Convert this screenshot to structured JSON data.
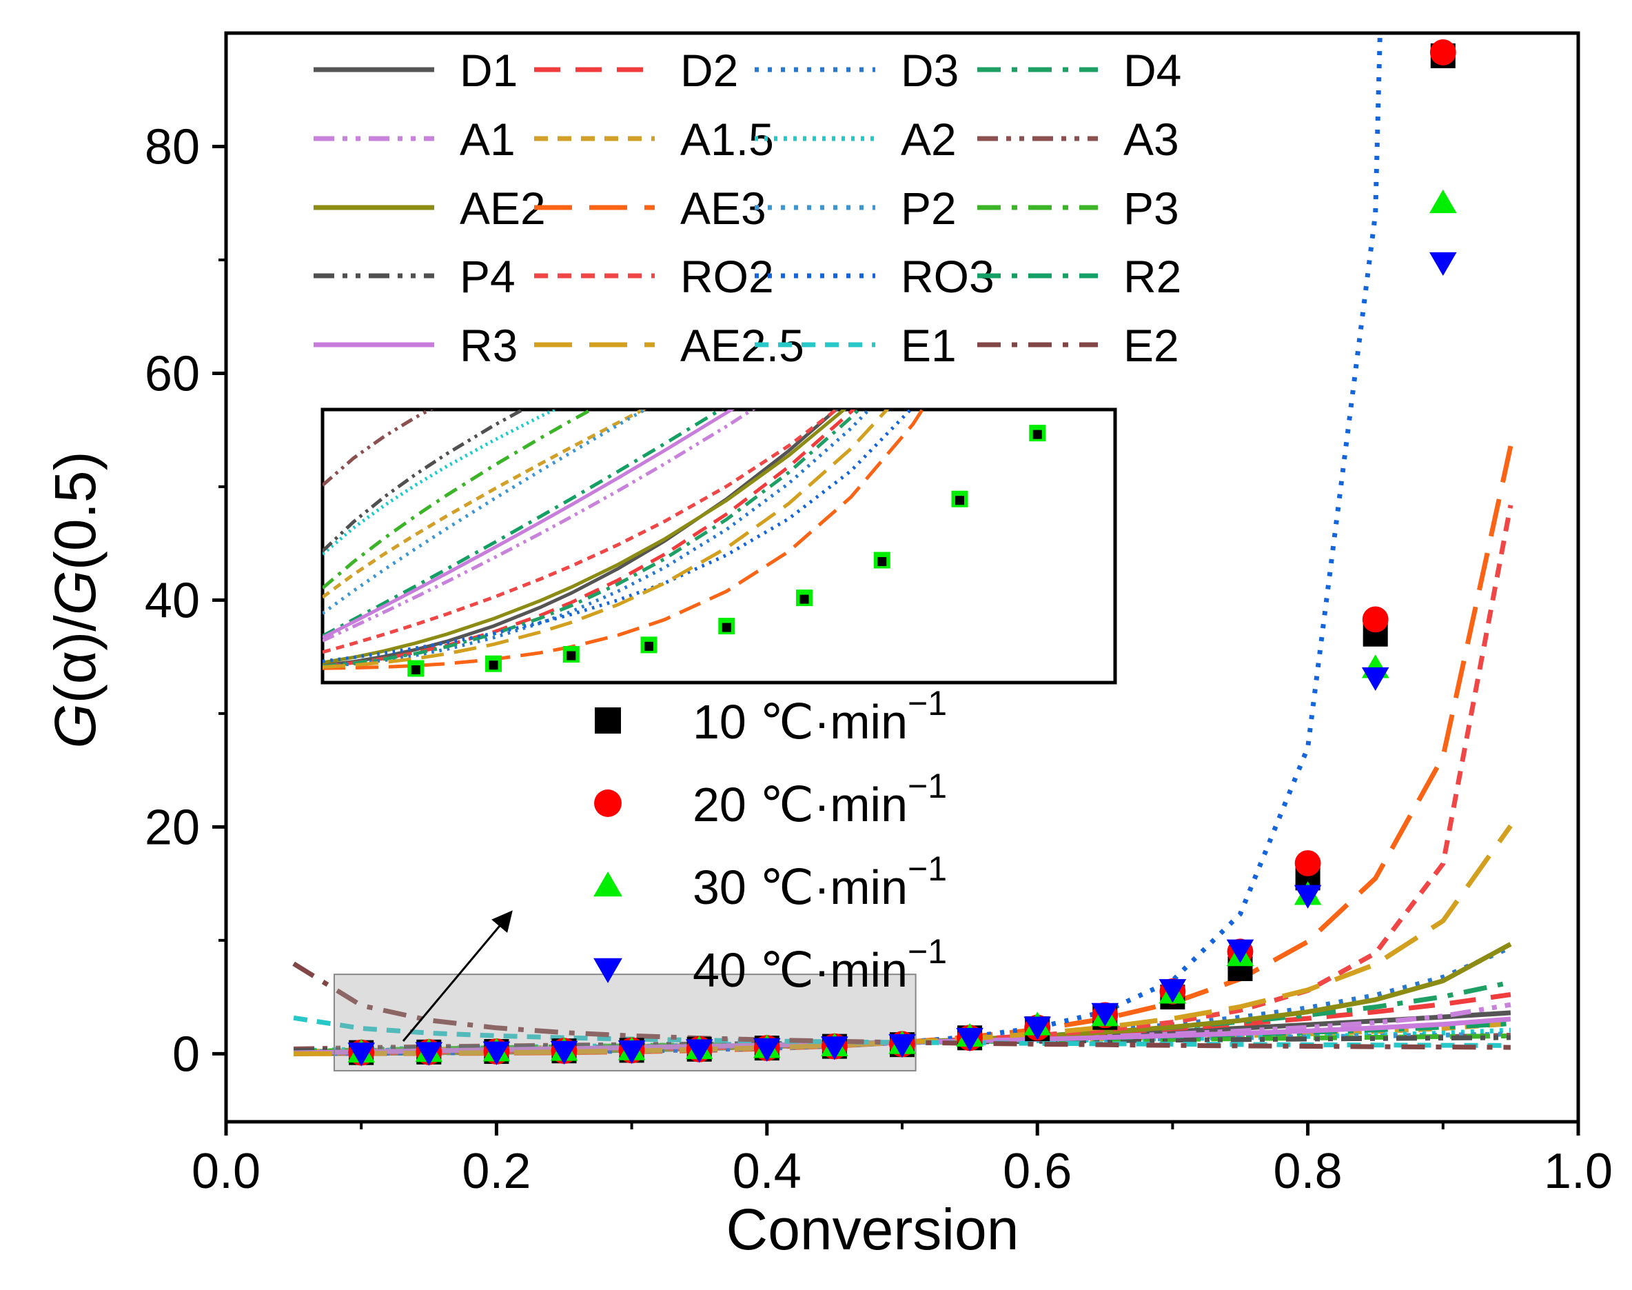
{
  "chart_data": {
    "type": "line",
    "title": "",
    "xlabel": "Conversion",
    "ylabel_parts": {
      "g1": "G",
      "mid1": "(α)/",
      "g2": "G",
      "mid2": "(0.5)"
    },
    "xlim": [
      0.0,
      1.0
    ],
    "ylim": [
      -6,
      90
    ],
    "x_ticks": [
      0.0,
      0.2,
      0.4,
      0.6,
      0.8,
      1.0
    ],
    "x_tick_labels": [
      "0.0",
      "0.2",
      "0.4",
      "0.6",
      "0.8",
      "1.0"
    ],
    "y_ticks": [
      0,
      20,
      40,
      60,
      80
    ],
    "y_tick_labels": [
      "0",
      "20",
      "40",
      "60",
      "80"
    ],
    "grid": false,
    "model_series": [
      {
        "name": "D1",
        "color": "#555555",
        "dash": "solid"
      },
      {
        "name": "D2",
        "color": "#f03c3c",
        "dash": "dash"
      },
      {
        "name": "D3",
        "color": "#2878d2",
        "dash": "dot"
      },
      {
        "name": "D4",
        "color": "#1ea064",
        "dash": "dashdot"
      },
      {
        "name": "A1",
        "color": "#c882dc",
        "dash": "dashdotdot"
      },
      {
        "name": "A1.5",
        "color": "#d2a028",
        "dash": "shortdash"
      },
      {
        "name": "A2",
        "color": "#1ecbcb",
        "dash": "shortdot"
      },
      {
        "name": "A3",
        "color": "#8c5050",
        "dash": "dashdotdot"
      },
      {
        "name": "AE2",
        "color": "#8c8c14",
        "dash": "solid"
      },
      {
        "name": "AE3",
        "color": "#fa6414",
        "dash": "longdash"
      },
      {
        "name": "P2",
        "color": "#3c96d2",
        "dash": "dot"
      },
      {
        "name": "P3",
        "color": "#3cb428",
        "dash": "dashdot"
      },
      {
        "name": "P4",
        "color": "#505050",
        "dash": "dashdotdot"
      },
      {
        "name": "RO2",
        "color": "#f04646",
        "dash": "shortdash"
      },
      {
        "name": "RO3",
        "color": "#1464dc",
        "dash": "dot"
      },
      {
        "name": "R2",
        "color": "#14a064",
        "dash": "dashdot"
      },
      {
        "name": "R3",
        "color": "#c87ddc",
        "dash": "solid"
      },
      {
        "name": "AE2.5",
        "color": "#d2a01e",
        "dash": "longdash"
      },
      {
        "name": "E1",
        "color": "#28c8c8",
        "dash": "shortdash"
      },
      {
        "name": "E2",
        "color": "#824646",
        "dash": "dashdot"
      }
    ],
    "curve_x": [
      0.05,
      0.1,
      0.15,
      0.2,
      0.25,
      0.3,
      0.35,
      0.4,
      0.45,
      0.5,
      0.55,
      0.6,
      0.65,
      0.7,
      0.75,
      0.8,
      0.85,
      0.9,
      0.95
    ],
    "experimental_x": [
      0.1,
      0.15,
      0.2,
      0.25,
      0.3,
      0.35,
      0.4,
      0.45,
      0.5,
      0.55,
      0.6,
      0.65,
      0.7,
      0.75,
      0.8,
      0.85,
      0.9
    ],
    "experimental_series": [
      {
        "name": "10 ℃·min⁻¹",
        "label": "10 ℃·min",
        "exp": "−1",
        "marker": "square",
        "color": "#000000",
        "values": [
          0.1,
          0.15,
          0.2,
          0.25,
          0.3,
          0.4,
          0.5,
          0.65,
          0.8,
          1.4,
          2.2,
          3.2,
          5.0,
          7.5,
          15.5,
          37.0,
          88.0
        ]
      },
      {
        "name": "20 ℃·min⁻¹",
        "label": "20 ℃·min",
        "exp": "−1",
        "marker": "circle",
        "color": "#ff0000",
        "values": [
          0.1,
          0.15,
          0.2,
          0.25,
          0.3,
          0.4,
          0.5,
          0.65,
          0.85,
          1.4,
          2.3,
          3.4,
          5.5,
          9.0,
          16.8,
          38.3,
          88.3
        ]
      },
      {
        "name": "30 ℃·min⁻¹",
        "label": "30 ℃·min",
        "exp": "−1",
        "marker": "triangle-up",
        "color": "#00ee00",
        "values": [
          0.1,
          0.15,
          0.2,
          0.25,
          0.3,
          0.4,
          0.5,
          0.65,
          0.85,
          1.5,
          2.5,
          3.3,
          5.3,
          8.6,
          14.0,
          34.0,
          75.0
        ]
      },
      {
        "name": "40 ℃·min⁻¹",
        "label": "40 ℃·min",
        "exp": "−1",
        "marker": "triangle-down",
        "color": "#0000ff",
        "values": [
          0.1,
          0.15,
          0.2,
          0.25,
          0.3,
          0.4,
          0.5,
          0.65,
          0.85,
          1.4,
          2.4,
          3.6,
          5.7,
          9.2,
          14.0,
          33.2,
          69.8
        ]
      }
    ],
    "inset": {
      "zoom_region_x": [
        0.08,
        0.51
      ],
      "zoom_region_y": [
        -1.5,
        7.0
      ],
      "arrow": true
    }
  }
}
